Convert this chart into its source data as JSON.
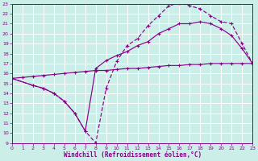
{
  "bg_color": "#cceee8",
  "grid_color": "#aaddcc",
  "line_color": "#880088",
  "xmin": 0,
  "xmax": 23,
  "ymin": 9,
  "ymax": 23,
  "xlabel": "Windchill (Refroidissement éolien,°C)",
  "line1_x": [
    0,
    1,
    2,
    3,
    4,
    5,
    6,
    7,
    8,
    9,
    10,
    11,
    12,
    13,
    14,
    15,
    16,
    17,
    18,
    19,
    20,
    21,
    22,
    23
  ],
  "line1_y": [
    15.5,
    15.6,
    15.7,
    15.8,
    15.9,
    16.0,
    16.1,
    16.2,
    16.3,
    16.3,
    16.4,
    16.5,
    16.5,
    16.6,
    16.7,
    16.8,
    16.8,
    16.9,
    16.9,
    17.0,
    17.0,
    17.0,
    17.0,
    17.0
  ],
  "line2_x": [
    0,
    2,
    3,
    4,
    5,
    6,
    7,
    8,
    9,
    10,
    11,
    12,
    13,
    14,
    15,
    16,
    17,
    18,
    19,
    20,
    21,
    22,
    23
  ],
  "line2_y": [
    15.5,
    14.8,
    14.5,
    14.0,
    13.2,
    12.0,
    10.2,
    9.0,
    14.5,
    17.2,
    18.8,
    19.5,
    20.8,
    21.8,
    22.8,
    23.1,
    22.8,
    22.5,
    21.8,
    21.2,
    21.0,
    19.0,
    17.0
  ],
  "line3_x": [
    0,
    2,
    3,
    4,
    5,
    6,
    7,
    8,
    9,
    10,
    11,
    12,
    13,
    14,
    15,
    16,
    17,
    18,
    19,
    20,
    21,
    22,
    23
  ],
  "line3_y": [
    15.5,
    14.8,
    14.5,
    14.0,
    13.2,
    12.0,
    10.2,
    16.5,
    17.3,
    17.8,
    18.2,
    18.8,
    19.2,
    20.0,
    20.5,
    21.0,
    21.0,
    21.2,
    21.0,
    20.5,
    19.8,
    18.5,
    17.0
  ]
}
